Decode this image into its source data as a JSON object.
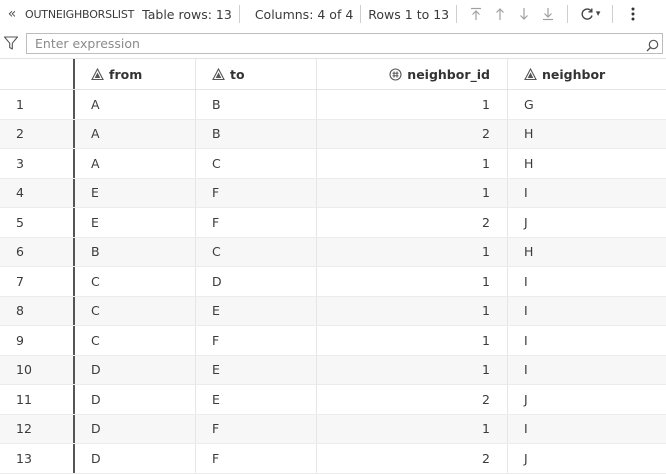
{
  "toolbar": {
    "collapse_glyph": "«",
    "table_name": "OUTNEIGHBORSLIST",
    "table_rows": "Table rows: 13",
    "columns": "Columns: 4 of 4",
    "rows_range": "Rows 1 to 13",
    "refresh_glyph": "▾"
  },
  "filter": {
    "placeholder": "Enter expression",
    "value": ""
  },
  "columns": [
    {
      "label": "",
      "type": "row-number"
    },
    {
      "label": "from",
      "type": "character",
      "icon": "character-column-icon"
    },
    {
      "label": "to",
      "type": "character",
      "icon": "character-column-icon"
    },
    {
      "label": "neighbor_id",
      "type": "numeric",
      "icon": "numeric-column-icon"
    },
    {
      "label": "neighbor",
      "type": "character",
      "icon": "character-column-icon"
    }
  ],
  "rows": [
    [
      "1",
      "A",
      "B",
      "1",
      "G"
    ],
    [
      "2",
      "A",
      "B",
      "2",
      "H"
    ],
    [
      "3",
      "A",
      "C",
      "1",
      "H"
    ],
    [
      "4",
      "E",
      "F",
      "1",
      "I"
    ],
    [
      "5",
      "E",
      "F",
      "2",
      "J"
    ],
    [
      "6",
      "B",
      "C",
      "1",
      "H"
    ],
    [
      "7",
      "C",
      "D",
      "1",
      "I"
    ],
    [
      "8",
      "C",
      "E",
      "1",
      "I"
    ],
    [
      "9",
      "C",
      "F",
      "1",
      "I"
    ],
    [
      "10",
      "D",
      "E",
      "1",
      "I"
    ],
    [
      "11",
      "D",
      "E",
      "2",
      "J"
    ],
    [
      "12",
      "D",
      "F",
      "1",
      "I"
    ],
    [
      "13",
      "D",
      "F",
      "2",
      "J"
    ]
  ]
}
